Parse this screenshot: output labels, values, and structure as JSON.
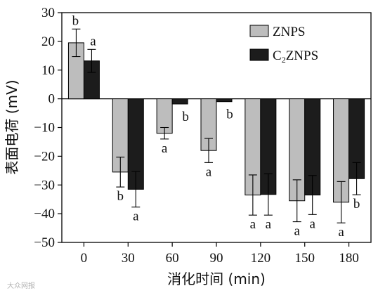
{
  "chart_data": {
    "type": "bar",
    "xlabel": "消化时间 (min)",
    "ylabel": "表面电荷 (mV)",
    "categories": [
      "0",
      "30",
      "60",
      "90",
      "120",
      "150",
      "180"
    ],
    "ylim": [
      -50,
      30
    ],
    "yticks": [
      30,
      20,
      10,
      0,
      -10,
      -20,
      -30,
      -40,
      -50
    ],
    "zero_line": true,
    "legend_position": "top-right",
    "series": [
      {
        "name": "ZNPS",
        "color": "#bdbdbd",
        "values": [
          19.5,
          -25.5,
          -12,
          -18,
          -33.5,
          -35.5,
          -36
        ],
        "errors": [
          4.8,
          5.2,
          2.0,
          4.2,
          7.0,
          7.3,
          7.2
        ],
        "letters": [
          "b",
          "b",
          "a",
          "a",
          "a",
          "a",
          "a"
        ]
      },
      {
        "name": "C2ZNPS",
        "name_main": "C",
        "name_sub": "2",
        "name_rest": "ZNPS",
        "color": "#1c1c1c",
        "values": [
          13.2,
          -31.5,
          -1.8,
          -1,
          -33.3,
          -33.5,
          -27.8
        ],
        "errors": [
          4.0,
          6.2,
          0,
          0,
          7.2,
          6.8,
          5.6
        ],
        "letters": [
          "a",
          "a",
          "b",
          "b",
          "a",
          "a",
          "b"
        ]
      }
    ],
    "watermark": "大众网报"
  }
}
